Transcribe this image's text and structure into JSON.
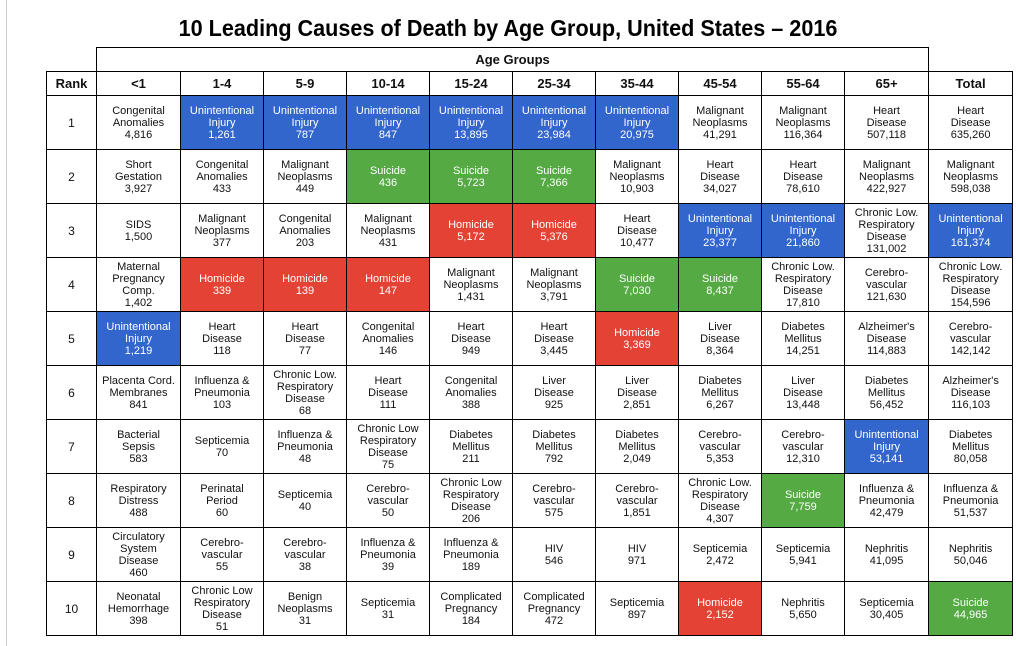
{
  "title": "10 Leading Causes of Death by Age Group, United States – 2016",
  "colors": {
    "blue": "#3366cc",
    "red": "#e34234",
    "green": "#55aa44"
  },
  "table": {
    "group_header": "Age Groups",
    "rank_header": "Rank",
    "columns": [
      "<1",
      "1-4",
      "5-9",
      "10-14",
      "15-24",
      "25-34",
      "35-44",
      "45-54",
      "55-64",
      "65+",
      "Total"
    ],
    "rows": [
      {
        "rank": "1",
        "cells": [
          {
            "lines": [
              "Congenital",
              "Anomalies"
            ],
            "value": "4,816",
            "color": ""
          },
          {
            "lines": [
              "Unintentional",
              "Injury"
            ],
            "value": "1,261",
            "color": "blue"
          },
          {
            "lines": [
              "Unintentional",
              "Injury"
            ],
            "value": "787",
            "color": "blue"
          },
          {
            "lines": [
              "Unintentional",
              "Injury"
            ],
            "value": "847",
            "color": "blue"
          },
          {
            "lines": [
              "Unintentional",
              "Injury"
            ],
            "value": "13,895",
            "color": "blue"
          },
          {
            "lines": [
              "Unintentional",
              "Injury"
            ],
            "value": "23,984",
            "color": "blue"
          },
          {
            "lines": [
              "Unintentional",
              "Injury"
            ],
            "value": "20,975",
            "color": "blue"
          },
          {
            "lines": [
              "Malignant",
              "Neoplasms"
            ],
            "value": "41,291",
            "color": ""
          },
          {
            "lines": [
              "Malignant",
              "Neoplasms"
            ],
            "value": "116,364",
            "color": ""
          },
          {
            "lines": [
              "Heart",
              "Disease"
            ],
            "value": "507,118",
            "color": ""
          },
          {
            "lines": [
              "Heart",
              "Disease"
            ],
            "value": "635,260",
            "color": ""
          }
        ]
      },
      {
        "rank": "2",
        "cells": [
          {
            "lines": [
              "Short",
              "Gestation"
            ],
            "value": "3,927",
            "color": ""
          },
          {
            "lines": [
              "Congenital",
              "Anomalies"
            ],
            "value": "433",
            "color": ""
          },
          {
            "lines": [
              "Malignant",
              "Neoplasms"
            ],
            "value": "449",
            "color": ""
          },
          {
            "lines": [
              "Suicide"
            ],
            "value": "436",
            "color": "green"
          },
          {
            "lines": [
              "Suicide"
            ],
            "value": "5,723",
            "color": "green"
          },
          {
            "lines": [
              "Suicide"
            ],
            "value": "7,366",
            "color": "green"
          },
          {
            "lines": [
              "Malignant",
              "Neoplasms"
            ],
            "value": "10,903",
            "color": ""
          },
          {
            "lines": [
              "Heart",
              "Disease"
            ],
            "value": "34,027",
            "color": ""
          },
          {
            "lines": [
              "Heart",
              "Disease"
            ],
            "value": "78,610",
            "color": ""
          },
          {
            "lines": [
              "Malignant",
              "Neoplasms"
            ],
            "value": "422,927",
            "color": ""
          },
          {
            "lines": [
              "Malignant",
              "Neoplasms"
            ],
            "value": "598,038",
            "color": ""
          }
        ]
      },
      {
        "rank": "3",
        "cells": [
          {
            "lines": [
              "SIDS"
            ],
            "value": "1,500",
            "color": ""
          },
          {
            "lines": [
              "Malignant",
              "Neoplasms"
            ],
            "value": "377",
            "color": ""
          },
          {
            "lines": [
              "Congenital",
              "Anomalies"
            ],
            "value": "203",
            "color": ""
          },
          {
            "lines": [
              "Malignant",
              "Neoplasms"
            ],
            "value": "431",
            "color": ""
          },
          {
            "lines": [
              "Homicide"
            ],
            "value": "5,172",
            "color": "red"
          },
          {
            "lines": [
              "Homicide"
            ],
            "value": "5,376",
            "color": "red"
          },
          {
            "lines": [
              "Heart",
              "Disease"
            ],
            "value": "10,477",
            "color": ""
          },
          {
            "lines": [
              "Unintentional",
              "Injury"
            ],
            "value": "23,377",
            "color": "blue"
          },
          {
            "lines": [
              "Unintentional",
              "Injury"
            ],
            "value": "21,860",
            "color": "blue"
          },
          {
            "lines": [
              "Chronic Low.",
              "Respiratory",
              "Disease"
            ],
            "value": "131,002",
            "color": ""
          },
          {
            "lines": [
              "Unintentional",
              "Injury"
            ],
            "value": "161,374",
            "color": "blue"
          }
        ]
      },
      {
        "rank": "4",
        "cells": [
          {
            "lines": [
              "Maternal",
              "Pregnancy",
              "Comp."
            ],
            "value": "1,402",
            "color": ""
          },
          {
            "lines": [
              "Homicide"
            ],
            "value": "339",
            "color": "red"
          },
          {
            "lines": [
              "Homicide"
            ],
            "value": "139",
            "color": "red"
          },
          {
            "lines": [
              "Homicide"
            ],
            "value": "147",
            "color": "red"
          },
          {
            "lines": [
              "Malignant",
              "Neoplasms"
            ],
            "value": "1,431",
            "color": ""
          },
          {
            "lines": [
              "Malignant",
              "Neoplasms"
            ],
            "value": "3,791",
            "color": ""
          },
          {
            "lines": [
              "Suicide"
            ],
            "value": "7,030",
            "color": "green"
          },
          {
            "lines": [
              "Suicide"
            ],
            "value": "8,437",
            "color": "green"
          },
          {
            "lines": [
              "Chronic Low.",
              "Respiratory",
              "Disease"
            ],
            "value": "17,810",
            "color": ""
          },
          {
            "lines": [
              "Cerebro-",
              "vascular"
            ],
            "value": "121,630",
            "color": ""
          },
          {
            "lines": [
              "Chronic Low.",
              "Respiratory",
              "Disease"
            ],
            "value": "154,596",
            "color": ""
          }
        ]
      },
      {
        "rank": "5",
        "cells": [
          {
            "lines": [
              "Unintentional",
              "Injury"
            ],
            "value": "1,219",
            "color": "blue"
          },
          {
            "lines": [
              "Heart",
              "Disease"
            ],
            "value": "118",
            "color": ""
          },
          {
            "lines": [
              "Heart",
              "Disease"
            ],
            "value": "77",
            "color": ""
          },
          {
            "lines": [
              "Congenital",
              "Anomalies"
            ],
            "value": "146",
            "color": ""
          },
          {
            "lines": [
              "Heart",
              "Disease"
            ],
            "value": "949",
            "color": ""
          },
          {
            "lines": [
              "Heart",
              "Disease"
            ],
            "value": "3,445",
            "color": ""
          },
          {
            "lines": [
              "Homicide"
            ],
            "value": "3,369",
            "color": "red"
          },
          {
            "lines": [
              "Liver",
              "Disease"
            ],
            "value": "8,364",
            "color": ""
          },
          {
            "lines": [
              "Diabetes",
              "Mellitus"
            ],
            "value": "14,251",
            "color": ""
          },
          {
            "lines": [
              "Alzheimer's",
              "Disease"
            ],
            "value": "114,883",
            "color": ""
          },
          {
            "lines": [
              "Cerebro-",
              "vascular"
            ],
            "value": "142,142",
            "color": ""
          }
        ]
      },
      {
        "rank": "6",
        "cells": [
          {
            "lines": [
              "Placenta Cord.",
              "Membranes"
            ],
            "value": "841",
            "color": ""
          },
          {
            "lines": [
              "Influenza &",
              "Pneumonia"
            ],
            "value": "103",
            "color": ""
          },
          {
            "lines": [
              "Chronic Low.",
              "Respiratory",
              "Disease"
            ],
            "value": "68",
            "color": ""
          },
          {
            "lines": [
              "Heart",
              "Disease"
            ],
            "value": "111",
            "color": ""
          },
          {
            "lines": [
              "Congenital",
              "Anomalies"
            ],
            "value": "388",
            "color": ""
          },
          {
            "lines": [
              "Liver",
              "Disease"
            ],
            "value": "925",
            "color": ""
          },
          {
            "lines": [
              "Liver",
              "Disease"
            ],
            "value": "2,851",
            "color": ""
          },
          {
            "lines": [
              "Diabetes",
              "Mellitus"
            ],
            "value": "6,267",
            "color": ""
          },
          {
            "lines": [
              "Liver",
              "Disease"
            ],
            "value": "13,448",
            "color": ""
          },
          {
            "lines": [
              "Diabetes",
              "Mellitus"
            ],
            "value": "56,452",
            "color": ""
          },
          {
            "lines": [
              "Alzheimer's",
              "Disease"
            ],
            "value": "116,103",
            "color": ""
          }
        ]
      },
      {
        "rank": "7",
        "cells": [
          {
            "lines": [
              "Bacterial",
              "Sepsis"
            ],
            "value": "583",
            "color": ""
          },
          {
            "lines": [
              "Septicemia"
            ],
            "value": "70",
            "color": ""
          },
          {
            "lines": [
              "Influenza &",
              "Pneumonia"
            ],
            "value": "48",
            "color": ""
          },
          {
            "lines": [
              "Chronic Low",
              "Respiratory",
              "Disease"
            ],
            "value": "75",
            "color": ""
          },
          {
            "lines": [
              "Diabetes",
              "Mellitus"
            ],
            "value": "211",
            "color": ""
          },
          {
            "lines": [
              "Diabetes",
              "Mellitus"
            ],
            "value": "792",
            "color": ""
          },
          {
            "lines": [
              "Diabetes",
              "Mellitus"
            ],
            "value": "2,049",
            "color": ""
          },
          {
            "lines": [
              "Cerebro-",
              "vascular"
            ],
            "value": "5,353",
            "color": ""
          },
          {
            "lines": [
              "Cerebro-",
              "vascular"
            ],
            "value": "12,310",
            "color": ""
          },
          {
            "lines": [
              "Unintentional",
              "Injury"
            ],
            "value": "53,141",
            "color": "blue"
          },
          {
            "lines": [
              "Diabetes",
              "Mellitus"
            ],
            "value": "80,058",
            "color": ""
          }
        ]
      },
      {
        "rank": "8",
        "cells": [
          {
            "lines": [
              "Respiratory",
              "Distress"
            ],
            "value": "488",
            "color": ""
          },
          {
            "lines": [
              "Perinatal",
              "Period"
            ],
            "value": "60",
            "color": ""
          },
          {
            "lines": [
              "Septicemia"
            ],
            "value": "40",
            "color": ""
          },
          {
            "lines": [
              "Cerebro-",
              "vascular"
            ],
            "value": "50",
            "color": ""
          },
          {
            "lines": [
              "Chronic Low",
              "Respiratory",
              "Disease"
            ],
            "value": "206",
            "color": ""
          },
          {
            "lines": [
              "Cerebro-",
              "vascular"
            ],
            "value": "575",
            "color": ""
          },
          {
            "lines": [
              "Cerebro-",
              "vascular"
            ],
            "value": "1,851",
            "color": ""
          },
          {
            "lines": [
              "Chronic Low.",
              "Respiratory",
              "Disease"
            ],
            "value": "4,307",
            "color": ""
          },
          {
            "lines": [
              "Suicide"
            ],
            "value": "7,759",
            "color": "green"
          },
          {
            "lines": [
              "Influenza &",
              "Pneumonia"
            ],
            "value": "42,479",
            "color": ""
          },
          {
            "lines": [
              "Influenza &",
              "Pneumonia"
            ],
            "value": "51,537",
            "color": ""
          }
        ]
      },
      {
        "rank": "9",
        "cells": [
          {
            "lines": [
              "Circulatory",
              "System",
              "Disease"
            ],
            "value": "460",
            "color": ""
          },
          {
            "lines": [
              "Cerebro-",
              "vascular"
            ],
            "value": "55",
            "color": ""
          },
          {
            "lines": [
              "Cerebro-",
              "vascular"
            ],
            "value": "38",
            "color": ""
          },
          {
            "lines": [
              "Influenza &",
              "Pneumonia"
            ],
            "value": "39",
            "color": ""
          },
          {
            "lines": [
              "Influenza &",
              "Pneumonia"
            ],
            "value": "189",
            "color": ""
          },
          {
            "lines": [
              "HIV"
            ],
            "value": "546",
            "color": ""
          },
          {
            "lines": [
              "HIV"
            ],
            "value": "971",
            "color": ""
          },
          {
            "lines": [
              "Septicemia"
            ],
            "value": "2,472",
            "color": ""
          },
          {
            "lines": [
              "Septicemia"
            ],
            "value": "5,941",
            "color": ""
          },
          {
            "lines": [
              "Nephritis"
            ],
            "value": "41,095",
            "color": ""
          },
          {
            "lines": [
              "Nephritis"
            ],
            "value": "50,046",
            "color": ""
          }
        ]
      },
      {
        "rank": "10",
        "cells": [
          {
            "lines": [
              "Neonatal",
              "Hemorrhage"
            ],
            "value": "398",
            "color": ""
          },
          {
            "lines": [
              "Chronic Low",
              "Respiratory",
              "Disease"
            ],
            "value": "51",
            "color": ""
          },
          {
            "lines": [
              "Benign",
              "Neoplasms"
            ],
            "value": "31",
            "color": ""
          },
          {
            "lines": [
              "Septicemia"
            ],
            "value": "31",
            "color": ""
          },
          {
            "lines": [
              "Complicated",
              "Pregnancy"
            ],
            "value": "184",
            "color": ""
          },
          {
            "lines": [
              "Complicated",
              "Pregnancy"
            ],
            "value": "472",
            "color": ""
          },
          {
            "lines": [
              "Septicemia"
            ],
            "value": "897",
            "color": ""
          },
          {
            "lines": [
              "Homicide"
            ],
            "value": "2,152",
            "color": "red"
          },
          {
            "lines": [
              "Nephritis"
            ],
            "value": "5,650",
            "color": ""
          },
          {
            "lines": [
              "Septicemia"
            ],
            "value": "30,405",
            "color": ""
          },
          {
            "lines": [
              "Suicide"
            ],
            "value": "44,965",
            "color": "green"
          }
        ]
      }
    ]
  }
}
